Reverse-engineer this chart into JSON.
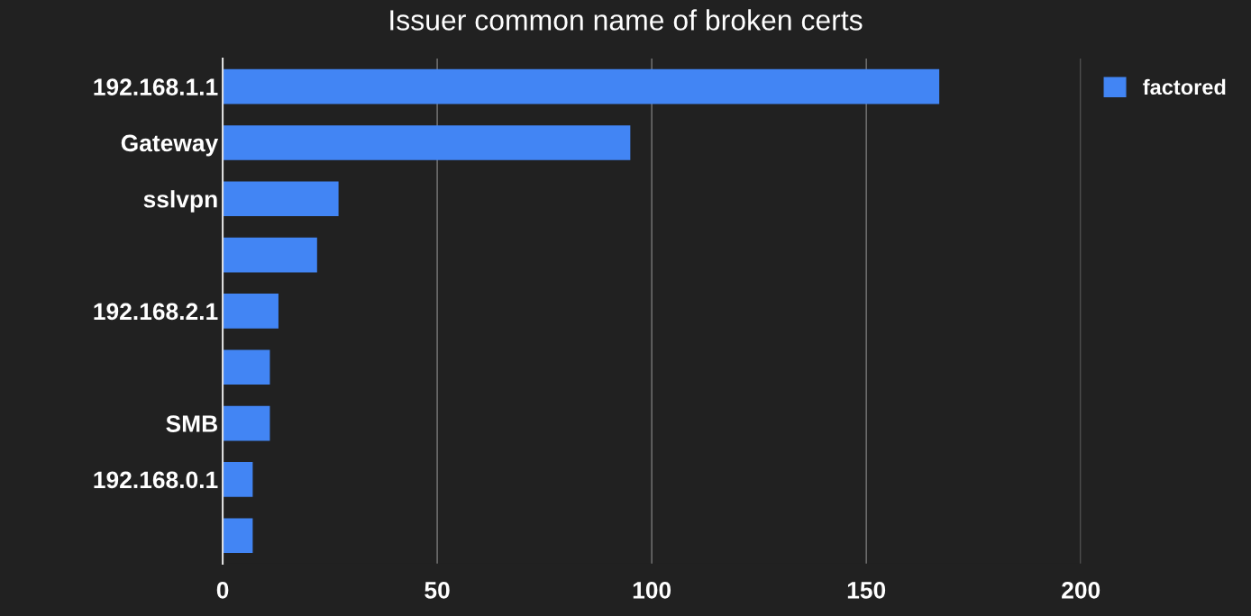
{
  "chart_data": {
    "type": "bar",
    "orientation": "horizontal",
    "title": "Issuer common name of broken certs",
    "categories": [
      "192.168.1.1",
      "Gateway",
      "sslvpn",
      null,
      "192.168.2.1",
      null,
      "SMB",
      "192.168.0.1",
      null
    ],
    "series": [
      {
        "name": "factored",
        "color": "#4285f4",
        "values": [
          167,
          95,
          27,
          22,
          13,
          11,
          11,
          7,
          7
        ]
      }
    ],
    "xlim": [
      0,
      200
    ],
    "xticks": [
      0,
      50,
      100,
      150,
      200
    ],
    "grid": "x",
    "legend": "top right"
  }
}
